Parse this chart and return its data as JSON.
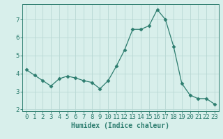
{
  "x": [
    0,
    1,
    2,
    3,
    4,
    5,
    6,
    7,
    8,
    9,
    10,
    11,
    12,
    13,
    14,
    15,
    16,
    17,
    18,
    19,
    20,
    21,
    22,
    23
  ],
  "y": [
    4.2,
    3.9,
    3.6,
    3.3,
    3.7,
    3.85,
    3.75,
    3.6,
    3.5,
    3.15,
    3.6,
    4.4,
    5.3,
    6.45,
    6.45,
    6.65,
    7.55,
    7.0,
    5.5,
    3.45,
    2.8,
    2.6,
    2.6,
    2.3
  ],
  "xlabel": "Humidex (Indice chaleur)",
  "ylim": [
    1.9,
    7.85
  ],
  "xlim": [
    -0.5,
    23.5
  ],
  "yticks": [
    2,
    3,
    4,
    5,
    6,
    7
  ],
  "xticks": [
    0,
    1,
    2,
    3,
    4,
    5,
    6,
    7,
    8,
    9,
    10,
    11,
    12,
    13,
    14,
    15,
    16,
    17,
    18,
    19,
    20,
    21,
    22,
    23
  ],
  "line_color": "#2d7d6f",
  "marker": "D",
  "marker_size": 2.5,
  "bg_color": "#d8efeb",
  "grid_color": "#b8d8d4",
  "axis_label_color": "#2d7d6f",
  "tick_label_color": "#2d7d6f",
  "xlabel_fontsize": 7,
  "tick_fontsize": 6.5
}
